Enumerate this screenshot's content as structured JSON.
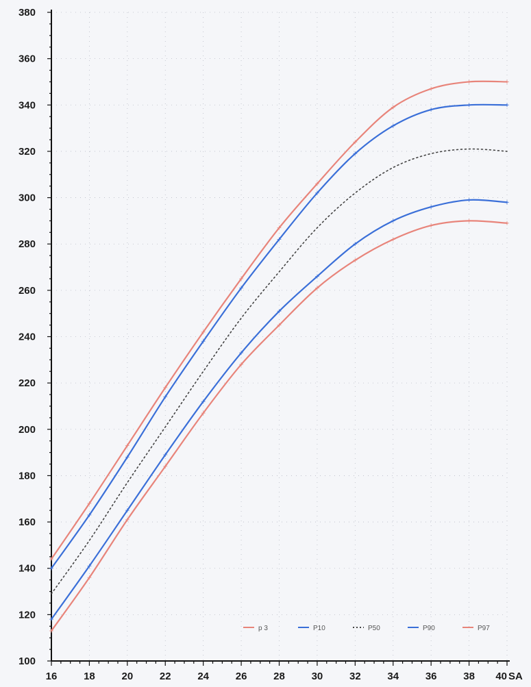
{
  "chart_data": {
    "type": "line",
    "title": "",
    "xlabel": "SA",
    "ylabel": "",
    "xlim": [
      16,
      40
    ],
    "ylim": [
      100,
      380
    ],
    "x_ticks": [
      16,
      18,
      20,
      22,
      24,
      26,
      28,
      30,
      32,
      34,
      36,
      38,
      40
    ],
    "y_ticks": [
      100,
      120,
      140,
      160,
      180,
      200,
      220,
      240,
      260,
      280,
      300,
      320,
      340,
      360,
      380
    ],
    "grid": true,
    "legend_position": "bottom-right",
    "x": [
      16,
      18,
      20,
      22,
      24,
      26,
      28,
      30,
      32,
      34,
      36,
      38,
      40
    ],
    "series": [
      {
        "name": "p 3",
        "color": "#e8847a",
        "style": "solid",
        "values": [
          113,
          136,
          161,
          184,
          207,
          228,
          245,
          261,
          273,
          282,
          288,
          290,
          289
        ]
      },
      {
        "name": "P10",
        "color": "#3a6fd8",
        "style": "solid",
        "values": [
          118,
          141,
          165,
          189,
          212,
          233,
          251,
          266,
          280,
          290,
          296,
          299,
          298
        ]
      },
      {
        "name": "P50",
        "color": "#444444",
        "style": "dotted",
        "values": [
          129,
          152,
          177,
          201,
          225,
          248,
          268,
          287,
          302,
          313,
          319,
          321,
          320
        ]
      },
      {
        "name": "P90",
        "color": "#3a6fd8",
        "style": "solid",
        "values": [
          140,
          163,
          188,
          214,
          238,
          261,
          282,
          302,
          319,
          331,
          338,
          340,
          340
        ]
      },
      {
        "name": "P97",
        "color": "#e8847a",
        "style": "solid",
        "values": [
          144,
          168,
          193,
          218,
          242,
          265,
          287,
          306,
          324,
          339,
          347,
          350,
          350
        ]
      }
    ]
  }
}
